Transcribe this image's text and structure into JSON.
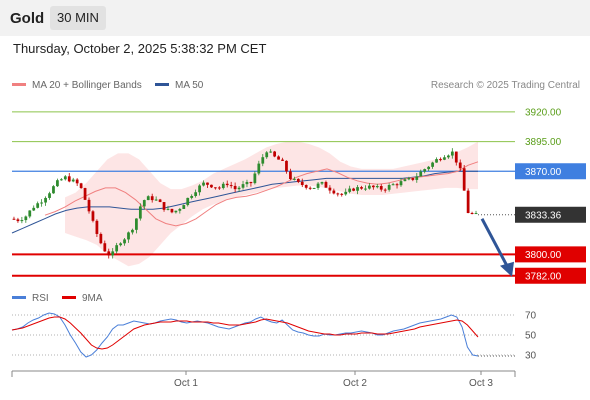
{
  "header": {
    "instrument": "Gold",
    "timeframe": "30 MIN"
  },
  "datetime": "Thursday, October 2, 2025 5:38:32 PM CET",
  "credit": "Research © 2025 Trading Central",
  "legend": [
    {
      "label": "MA 20 + Bollinger Bands",
      "color": "#f08080"
    },
    {
      "label": "MA 50",
      "color": "#2f5597"
    }
  ],
  "rsi_legend": [
    {
      "label": "RSI",
      "color": "#4a7fd8"
    },
    {
      "label": "9MA",
      "color": "#e00000"
    }
  ],
  "colors": {
    "up": "#2e8b2e",
    "down": "#c00000",
    "band": "#fde0e0",
    "target_line": "#8bc34a",
    "pivot": "#3f7fe0",
    "support": "#e00000"
  },
  "chart_data": [
    {
      "type": "candlestick",
      "title": "",
      "ylim": [
        3770,
        3930
      ],
      "x_labels": [
        "Oct 1",
        "Oct 2",
        "Oct 3"
      ],
      "last_price": "3833.36",
      "price_levels": [
        {
          "value": 3920.0,
          "label": "3920.00",
          "style": "resistance-2"
        },
        {
          "value": 3895.0,
          "label": "3895.00",
          "style": "resistance-1"
        },
        {
          "value": 3870.0,
          "label": "3870.00",
          "style": "pivot"
        },
        {
          "value": 3800.0,
          "label": "3800.00",
          "style": "support-1"
        },
        {
          "value": 3782.0,
          "label": "3782.00",
          "style": "support-2"
        }
      ],
      "close_path": [
        3830,
        3829,
        3832,
        3840,
        3845,
        3852,
        3860,
        3865,
        3862,
        3858,
        3840,
        3820,
        3805,
        3798,
        3810,
        3815,
        3825,
        3845,
        3848,
        3845,
        3838,
        3835,
        3840,
        3848,
        3855,
        3860,
        3858,
        3856,
        3860,
        3855,
        3858,
        3860,
        3875,
        3888,
        3882,
        3878,
        3865,
        3860,
        3858,
        3856,
        3860,
        3856,
        3852,
        3850,
        3855,
        3856,
        3857,
        3856,
        3855,
        3858,
        3860,
        3862,
        3864,
        3870,
        3875,
        3880,
        3884,
        3886,
        3870,
        3835,
        3833
      ],
      "ma20": [
        3833,
        3836,
        3840,
        3845,
        3849,
        3853,
        3856,
        3856,
        3852,
        3846,
        3838,
        3830,
        3826,
        3824,
        3826,
        3830,
        3836,
        3842,
        3846,
        3848,
        3849,
        3851,
        3854,
        3857,
        3861,
        3865,
        3868,
        3870,
        3872,
        3869,
        3865,
        3862,
        3860,
        3859,
        3860,
        3862,
        3864,
        3865,
        3866,
        3867,
        3868,
        3870,
        3875,
        3878
      ],
      "ma50": [
        3818,
        3822,
        3826,
        3830,
        3834,
        3837,
        3839,
        3840,
        3840,
        3840,
        3839,
        3838,
        3838,
        3838,
        3839,
        3841,
        3843,
        3845,
        3847,
        3849,
        3851,
        3853,
        3855,
        3857,
        3859,
        3860,
        3861,
        3862,
        3863,
        3864,
        3864,
        3864,
        3864,
        3864,
        3864,
        3864,
        3864,
        3865,
        3866,
        3868,
        3869,
        3870,
        3870,
        3870
      ],
      "bb_upper": [
        3848,
        3852,
        3860,
        3870,
        3880,
        3885,
        3885,
        3880,
        3870,
        3860,
        3855,
        3855,
        3858,
        3862,
        3868,
        3872,
        3876,
        3880,
        3885,
        3890,
        3893,
        3895,
        3895,
        3893,
        3890,
        3885,
        3878,
        3874,
        3872,
        3872,
        3872,
        3872,
        3874,
        3876,
        3878,
        3880,
        3882,
        3886,
        3890,
        3895
      ],
      "bb_lower": [
        3818,
        3815,
        3812,
        3808,
        3800,
        3795,
        3790,
        3792,
        3798,
        3808,
        3818,
        3825,
        3832,
        3838,
        3842,
        3845,
        3848,
        3850,
        3852,
        3854,
        3856,
        3857,
        3858,
        3858,
        3857,
        3855,
        3853,
        3851,
        3850,
        3850,
        3850,
        3851,
        3852,
        3853,
        3854,
        3855,
        3856,
        3856,
        3855,
        3855
      ]
    },
    {
      "type": "line",
      "title": "",
      "ylim": [
        20,
        80
      ],
      "y_ticks": [
        70,
        50,
        30
      ],
      "rsi": [
        55,
        56,
        58,
        62,
        65,
        67,
        70,
        72,
        71,
        68,
        60,
        50,
        42,
        33,
        28,
        30,
        35,
        42,
        48,
        56,
        60,
        60,
        62,
        64,
        63,
        62,
        61,
        62,
        64,
        65,
        66,
        65,
        63,
        62,
        63,
        64,
        63,
        62,
        60,
        58,
        57,
        56,
        58,
        60,
        62,
        63,
        66,
        68,
        65,
        63,
        62,
        65,
        60,
        55,
        53,
        52,
        50,
        49,
        49,
        51,
        50,
        50,
        51,
        52,
        52,
        53,
        54,
        53,
        52,
        50,
        50,
        52,
        54,
        55,
        56,
        58,
        60,
        62,
        63,
        64,
        65,
        66,
        68,
        70,
        68,
        58,
        38,
        30,
        29
      ],
      "ma9": [
        55,
        56,
        57,
        59,
        61,
        63,
        65,
        67,
        68,
        68,
        66,
        62,
        57,
        52,
        46,
        40,
        37,
        36,
        37,
        40,
        44,
        48,
        52,
        56,
        58,
        60,
        61,
        62,
        63,
        63,
        63,
        64,
        64,
        64,
        63,
        63,
        63,
        63,
        62,
        62,
        61,
        60,
        60,
        60,
        61,
        62,
        63,
        65,
        66,
        65,
        64,
        63,
        62,
        60,
        58,
        56,
        54,
        53,
        52,
        51,
        51,
        50,
        50,
        51,
        51,
        51,
        52,
        52,
        52,
        51,
        51,
        51,
        52,
        53,
        54,
        55,
        56,
        58,
        59,
        60,
        61,
        62,
        63,
        64,
        65,
        64,
        60,
        54,
        48
      ]
    }
  ]
}
